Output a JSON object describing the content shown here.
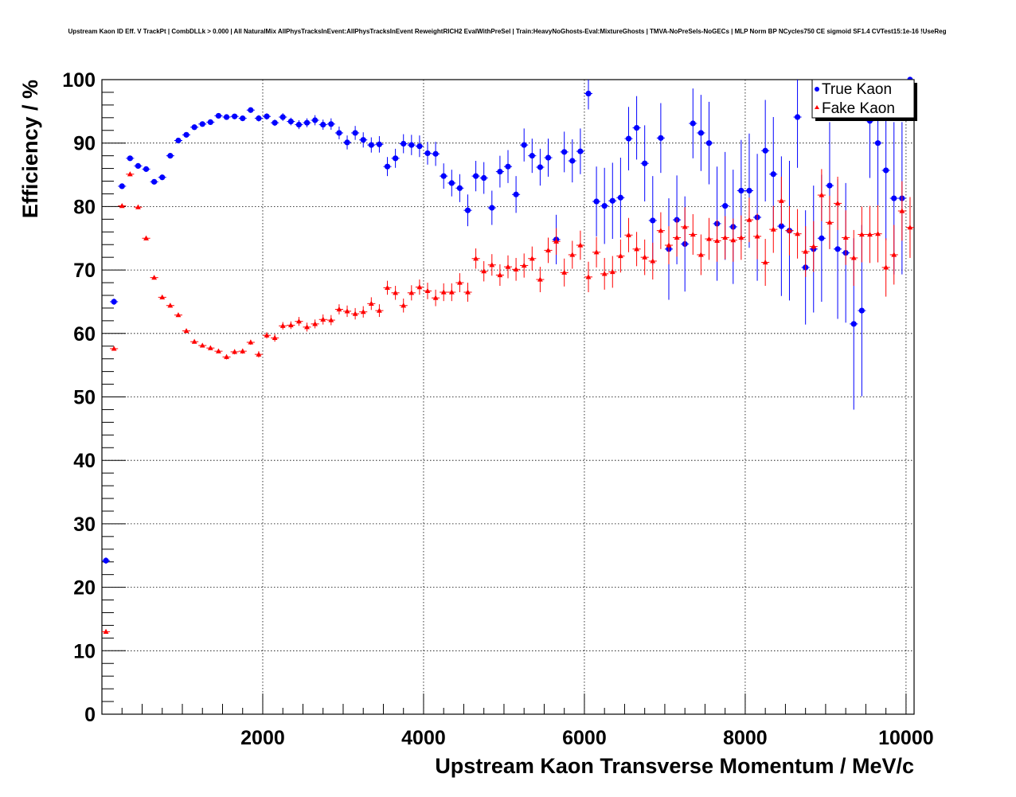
{
  "chart_data": {
    "type": "scatter",
    "title": "Upstream Kaon ID Eff. V TrackPt | CombDLLk > 0.000 | All NaturalMix AllPhysTracksInEvent:AllPhysTracksInEvent ReweightRICH2 EvalWithPreSel | Train:HeavyNoGhosts-Eval:MixtureGhosts | TMVA-NoPreSels-NoGECs | MLP Norm BP NCycles750 CE sigmoid SF1.4 CVTest15:1e-16 !UseReg",
    "xlabel": "Upstream Kaon Transverse Momentum / MeV/c",
    "ylabel": "Efficiency / %",
    "xlim": [
      0,
      10100
    ],
    "ylim": [
      0,
      100
    ],
    "x_ticks": [
      "2000",
      "4000",
      "6000",
      "8000",
      "10000"
    ],
    "y_ticks": [
      "0",
      "10",
      "20",
      "30",
      "40",
      "50",
      "60",
      "70",
      "80",
      "90",
      "100"
    ],
    "grid": true,
    "legend_position": "top-right",
    "bin_half_width": 50,
    "series": [
      {
        "name": "True Kaon",
        "color": "#0000ff",
        "marker": "circle",
        "x": [
          50,
          150,
          250,
          350,
          450,
          550,
          650,
          750,
          850,
          950,
          1050,
          1150,
          1250,
          1350,
          1450,
          1550,
          1650,
          1750,
          1850,
          1950,
          2050,
          2150,
          2250,
          2350,
          2450,
          2550,
          2650,
          2750,
          2850,
          2950,
          3050,
          3150,
          3250,
          3350,
          3450,
          3550,
          3650,
          3750,
          3850,
          3950,
          4050,
          4150,
          4250,
          4350,
          4450,
          4550,
          4650,
          4750,
          4850,
          4950,
          5050,
          5150,
          5250,
          5350,
          5450,
          5550,
          5650,
          5750,
          5850,
          5950,
          6050,
          6150,
          6250,
          6350,
          6450,
          6550,
          6650,
          6750,
          6850,
          6950,
          7050,
          7150,
          7250,
          7350,
          7450,
          7550,
          7650,
          7750,
          7850,
          7950,
          8050,
          8150,
          8250,
          8350,
          8450,
          8550,
          8650,
          8750,
          8850,
          8950,
          9050,
          9150,
          9250,
          9350,
          9450,
          9550,
          9650,
          9750,
          9850,
          9950,
          10050
        ],
        "y": [
          24.2,
          65,
          83.2,
          87.6,
          86.4,
          85.9,
          83.9,
          84.6,
          88,
          90.4,
          91.3,
          92.5,
          93,
          93.3,
          94.3,
          94.1,
          94.2,
          93.9,
          95.2,
          93.9,
          94.2,
          93.2,
          94.1,
          93.4,
          92.9,
          93.2,
          93.6,
          92.9,
          93,
          91.6,
          90.1,
          91.6,
          90.5,
          89.7,
          89.8,
          86.3,
          87.6,
          89.9,
          89.7,
          89.5,
          88.4,
          88.3,
          84.8,
          83.7,
          82.9,
          79.4,
          84.8,
          84.5,
          79.8,
          85.5,
          86.3,
          81.9,
          89.7,
          88,
          86.2,
          87.7,
          74.8,
          88.6,
          87.2,
          88.7,
          97.8,
          80.8,
          80.1,
          80.9,
          81.4,
          90.7,
          92.4,
          86.8,
          77.8,
          90.8,
          73.3,
          77.9,
          74.1,
          93.1,
          91.6,
          90,
          77.3,
          80.1,
          76.8,
          82.5,
          82.5,
          78.3,
          88.8,
          85.1,
          76.9,
          76.2,
          94.1,
          70.4,
          73.3,
          75,
          83.3,
          73.3,
          72.7,
          61.5,
          63.6,
          93.5,
          90,
          85.7,
          81.3,
          81.3,
          100
        ],
        "y_err": [
          0.5,
          0.5,
          0.4,
          0.4,
          0.4,
          0.4,
          0.4,
          0.4,
          0.4,
          0.4,
          0.4,
          0.4,
          0.4,
          0.4,
          0.4,
          0.4,
          0.4,
          0.4,
          0.4,
          0.5,
          0.5,
          0.5,
          0.6,
          0.6,
          0.7,
          0.7,
          0.8,
          0.8,
          0.9,
          1,
          1.1,
          1.1,
          1.2,
          1.2,
          1.3,
          1.5,
          1.5,
          1.5,
          1.6,
          1.7,
          1.8,
          1.9,
          2,
          2.1,
          2.2,
          2.5,
          2.4,
          2.5,
          2.7,
          2.5,
          2.6,
          2.9,
          2.6,
          2.7,
          2.9,
          3,
          3.9,
          3.2,
          3.4,
          3.6,
          2.5,
          5.5,
          6,
          6,
          6.3,
          5,
          5,
          6,
          7,
          5.5,
          8,
          7,
          7.5,
          5.5,
          6,
          6.5,
          9,
          8.5,
          9,
          8,
          9,
          10,
          8,
          9,
          11,
          11,
          8,
          9,
          10,
          10,
          10,
          11,
          11,
          13.5,
          13.5,
          9,
          10,
          11,
          12,
          12,
          4
        ]
      },
      {
        "name": "Fake Kaon",
        "color": "#ff0000",
        "marker": "triangle",
        "x": [
          50,
          150,
          250,
          350,
          450,
          550,
          650,
          750,
          850,
          950,
          1050,
          1150,
          1250,
          1350,
          1450,
          1550,
          1650,
          1750,
          1850,
          1950,
          2050,
          2150,
          2250,
          2350,
          2450,
          2550,
          2650,
          2750,
          2850,
          2950,
          3050,
          3150,
          3250,
          3350,
          3450,
          3550,
          3650,
          3750,
          3850,
          3950,
          4050,
          4150,
          4250,
          4350,
          4450,
          4550,
          4650,
          4750,
          4850,
          4950,
          5050,
          5150,
          5250,
          5350,
          5450,
          5550,
          5650,
          5750,
          5850,
          5950,
          6050,
          6150,
          6250,
          6350,
          6450,
          6550,
          6650,
          6750,
          6850,
          6950,
          7050,
          7150,
          7250,
          7350,
          7450,
          7550,
          7650,
          7750,
          7850,
          7950,
          8050,
          8150,
          8250,
          8350,
          8450,
          8550,
          8650,
          8750,
          8850,
          8950,
          9050,
          9150,
          9250,
          9350,
          9450,
          9550,
          9650,
          9750,
          9850,
          9950,
          10050
        ],
        "y": [
          13,
          57.6,
          80.1,
          85.1,
          79.9,
          75,
          68.8,
          65.7,
          64.4,
          62.9,
          60.4,
          58.7,
          58.1,
          57.7,
          57.2,
          56.3,
          57.1,
          57.2,
          58.6,
          56.7,
          59.7,
          59.3,
          61.2,
          61.3,
          61.9,
          61,
          61.5,
          62.2,
          62.1,
          63.8,
          63.5,
          63.1,
          63.4,
          64.7,
          63.6,
          67.2,
          66.4,
          64.4,
          66.4,
          67.3,
          66.7,
          65.6,
          66.5,
          66.5,
          68,
          66.5,
          71.8,
          69.8,
          70.8,
          69.2,
          70.5,
          70.1,
          70.7,
          71.8,
          68.5,
          73.1,
          74.5,
          69.6,
          72.4,
          73.9,
          68.9,
          72.8,
          69.4,
          69.7,
          72.2,
          75.5,
          73.3,
          72,
          71.4,
          76.2,
          73.9,
          75.1,
          76.8,
          75.6,
          72.4,
          74.9,
          74.6,
          75.1,
          74.7,
          75.1,
          77.9,
          75.3,
          71.2,
          76.4,
          80.9,
          76.2,
          75.7,
          72.9,
          73.7,
          81.8,
          77.5,
          80.5,
          75.1,
          71.9,
          75.6,
          75.6,
          75.7,
          70.4,
          72.4,
          79.3,
          76.7
        ],
        "y_err": [
          0.3,
          0.3,
          0.3,
          0.3,
          0.3,
          0.3,
          0.3,
          0.3,
          0.3,
          0.3,
          0.3,
          0.3,
          0.3,
          0.3,
          0.3,
          0.4,
          0.4,
          0.4,
          0.4,
          0.5,
          0.5,
          0.6,
          0.6,
          0.6,
          0.7,
          0.7,
          0.7,
          0.8,
          0.8,
          0.8,
          0.9,
          0.9,
          0.9,
          1,
          1,
          1.1,
          1.1,
          1.1,
          1.2,
          1.2,
          1.3,
          1.3,
          1.4,
          1.4,
          1.5,
          1.5,
          1.6,
          1.6,
          1.7,
          1.7,
          1.8,
          1.8,
          1.9,
          1.9,
          2,
          2,
          2.1,
          2.2,
          2.2,
          2.3,
          2.4,
          2.4,
          2.5,
          2.5,
          2.6,
          2.7,
          2.7,
          2.8,
          2.9,
          2.9,
          3,
          3,
          3.1,
          3.2,
          3.2,
          3.3,
          3.3,
          3.4,
          3.4,
          3.5,
          3.5,
          3.6,
          3.7,
          3.7,
          3.8,
          3.9,
          3.9,
          4,
          4,
          4.1,
          4.2,
          4.2,
          4.3,
          4.4,
          4.4,
          4.5,
          4.5,
          4.6,
          4.7,
          4.7,
          4.8
        ]
      }
    ]
  }
}
